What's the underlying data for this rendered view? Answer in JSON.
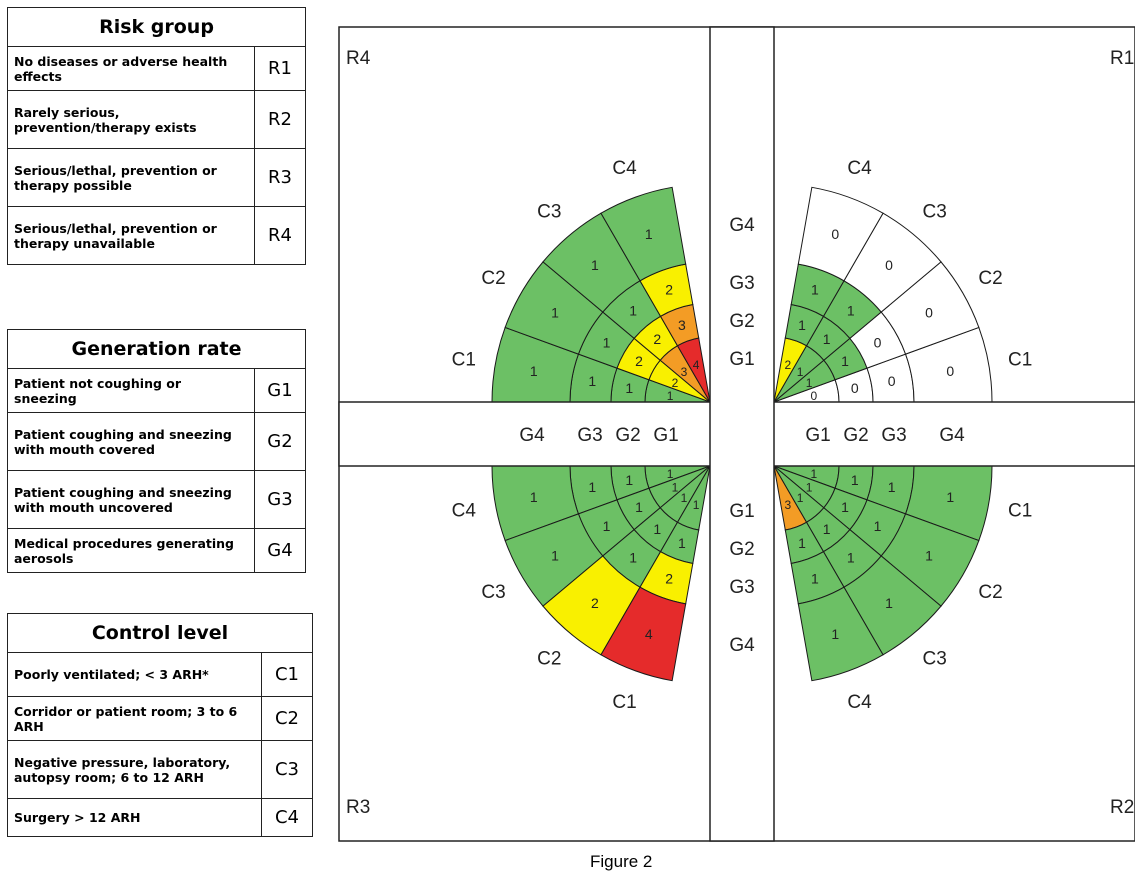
{
  "risk_table": {
    "title": "Risk group",
    "rows": [
      {
        "desc": "No diseases or adverse health effects",
        "code": "R1"
      },
      {
        "desc": "Rarely serious, prevention/therapy exists",
        "code": "R2"
      },
      {
        "desc": "Serious/lethal, prevention or therapy possible",
        "code": "R3"
      },
      {
        "desc": "Serious/lethal, prevention or therapy unavailable",
        "code": "R4"
      }
    ]
  },
  "generation_table": {
    "title": "Generation rate",
    "rows": [
      {
        "desc": "Patient not coughing or sneezing",
        "code": "G1"
      },
      {
        "desc": "Patient coughing and sneezing with mouth covered",
        "code": "G2"
      },
      {
        "desc": "Patient coughing and sneezing with mouth uncovered",
        "code": "G3"
      },
      {
        "desc": "Medical procedures generating aerosols",
        "code": "G4"
      }
    ]
  },
  "control_table": {
    "title": "Control level",
    "rows": [
      {
        "desc": "Poorly ventilated; < 3 ARH*",
        "code": "C1"
      },
      {
        "desc": "Corridor or patient room; 3 to 6 ARH",
        "code": "C2"
      },
      {
        "desc": "Negative pressure, laboratory, autopsy room; 6 to 12 ARH",
        "code": "C3"
      },
      {
        "desc": "Surgery > 12 ARH",
        "code": "C4"
      }
    ]
  },
  "colors": {
    "0": "#ffffff",
    "1": "#6cc065",
    "2": "#f9f000",
    "3": "#f39c25",
    "4": "#e52b2b"
  },
  "diagram": {
    "caption": "Figure 2",
    "quadrants": [
      {
        "risk": "R4",
        "gen_labels": [
          "G1",
          "G2",
          "G3",
          "G4"
        ],
        "ctrl_labels": [
          "C1",
          "C2",
          "C3",
          "C4"
        ],
        "scores": [
          [
            1,
            1,
            1,
            1
          ],
          [
            2,
            2,
            1,
            1
          ],
          [
            3,
            2,
            1,
            1
          ],
          [
            4,
            3,
            2,
            1
          ]
        ]
      },
      {
        "risk": "R1",
        "gen_labels": [
          "G1",
          "G2",
          "G3",
          "G4"
        ],
        "ctrl_labels": [
          "C1",
          "C2",
          "C3",
          "C4"
        ],
        "scores": [
          [
            0,
            0,
            0,
            0
          ],
          [
            1,
            1,
            0,
            0
          ],
          [
            1,
            1,
            1,
            0
          ],
          [
            2,
            1,
            1,
            0
          ]
        ]
      },
      {
        "risk": "R3",
        "gen_labels": [
          "G4",
          "G3",
          "G2",
          "G1"
        ],
        "ctrl_labels": [
          "C4",
          "C3",
          "C2",
          "C1"
        ],
        "scores": [
          [
            1,
            1,
            1,
            1
          ],
          [
            1,
            1,
            1,
            1
          ],
          [
            1,
            1,
            1,
            2
          ],
          [
            1,
            1,
            2,
            4
          ]
        ]
      },
      {
        "risk": "R2",
        "gen_labels": [
          "G1",
          "G2",
          "G3",
          "G4"
        ],
        "ctrl_labels": [
          "C1",
          "C2",
          "C3",
          "C4"
        ],
        "scores": [
          [
            1,
            1,
            1,
            1
          ],
          [
            1,
            1,
            1,
            1
          ],
          [
            1,
            1,
            1,
            1
          ],
          [
            3,
            1,
            1,
            1
          ]
        ]
      }
    ]
  }
}
